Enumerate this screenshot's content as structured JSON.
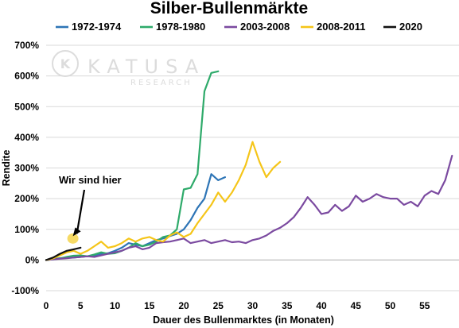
{
  "chart_data": {
    "type": "line",
    "title": "Silber-Bullenmärkte",
    "xlabel": "Dauer des Bullenmarktes (in Monaten)",
    "ylabel": "Rendite",
    "xlim": [
      0,
      60
    ],
    "ylim": [
      -100,
      700
    ],
    "x_ticks": [
      0,
      5,
      10,
      15,
      20,
      25,
      30,
      35,
      40,
      45,
      50,
      55
    ],
    "x_tick_labels": [
      "0",
      "5",
      "10",
      "15",
      "20",
      "25",
      "30",
      "35",
      "40",
      "45",
      "50",
      "55"
    ],
    "y_ticks": [
      -100,
      0,
      100,
      200,
      300,
      400,
      500,
      600,
      700
    ],
    "y_tick_labels": [
      "-100%",
      "0%",
      "100%",
      "200%",
      "300%",
      "400%",
      "500%",
      "600%",
      "700%"
    ],
    "grid": "horizontal",
    "legend_position": "top",
    "watermark": {
      "main": "KATUSA",
      "sub": "RESEARCH"
    },
    "annotation": {
      "text": "Wir sind hier",
      "x": 4,
      "y": 70
    },
    "series": [
      {
        "name": "1972-1974",
        "color": "#2e75b6",
        "points": [
          [
            0,
            0
          ],
          [
            1,
            3
          ],
          [
            2,
            6
          ],
          [
            3,
            8
          ],
          [
            4,
            8
          ],
          [
            5,
            10
          ],
          [
            6,
            12
          ],
          [
            7,
            15
          ],
          [
            8,
            20
          ],
          [
            9,
            22
          ],
          [
            10,
            30
          ],
          [
            11,
            40
          ],
          [
            12,
            55
          ],
          [
            13,
            50
          ],
          [
            14,
            45
          ],
          [
            15,
            55
          ],
          [
            16,
            65
          ],
          [
            17,
            70
          ],
          [
            18,
            78
          ],
          [
            19,
            85
          ],
          [
            20,
            100
          ],
          [
            21,
            130
          ],
          [
            22,
            170
          ],
          [
            23,
            200
          ],
          [
            24,
            280
          ],
          [
            25,
            260
          ],
          [
            26,
            270
          ]
        ]
      },
      {
        "name": "1978-1980",
        "color": "#2eaa6a",
        "points": [
          [
            0,
            0
          ],
          [
            1,
            2
          ],
          [
            2,
            5
          ],
          [
            3,
            10
          ],
          [
            4,
            14
          ],
          [
            5,
            15
          ],
          [
            6,
            12
          ],
          [
            7,
            18
          ],
          [
            8,
            25
          ],
          [
            9,
            20
          ],
          [
            10,
            22
          ],
          [
            11,
            30
          ],
          [
            12,
            40
          ],
          [
            13,
            55
          ],
          [
            14,
            45
          ],
          [
            15,
            50
          ],
          [
            16,
            60
          ],
          [
            17,
            75
          ],
          [
            18,
            80
          ],
          [
            19,
            100
          ],
          [
            20,
            230
          ],
          [
            21,
            235
          ],
          [
            22,
            280
          ],
          [
            23,
            550
          ],
          [
            24,
            610
          ],
          [
            25,
            615
          ]
        ]
      },
      {
        "name": "2003-2008",
        "color": "#7b4aa0",
        "points": [
          [
            0,
            0
          ],
          [
            1,
            2
          ],
          [
            2,
            4
          ],
          [
            3,
            6
          ],
          [
            4,
            8
          ],
          [
            5,
            10
          ],
          [
            6,
            12
          ],
          [
            7,
            10
          ],
          [
            8,
            15
          ],
          [
            9,
            20
          ],
          [
            10,
            25
          ],
          [
            11,
            30
          ],
          [
            12,
            40
          ],
          [
            13,
            45
          ],
          [
            14,
            35
          ],
          [
            15,
            40
          ],
          [
            16,
            55
          ],
          [
            17,
            58
          ],
          [
            18,
            60
          ],
          [
            19,
            65
          ],
          [
            20,
            70
          ],
          [
            21,
            55
          ],
          [
            22,
            60
          ],
          [
            23,
            65
          ],
          [
            24,
            55
          ],
          [
            25,
            60
          ],
          [
            26,
            65
          ],
          [
            27,
            58
          ],
          [
            28,
            60
          ],
          [
            29,
            55
          ],
          [
            30,
            65
          ],
          [
            31,
            70
          ],
          [
            32,
            80
          ],
          [
            33,
            95
          ],
          [
            34,
            105
          ],
          [
            35,
            120
          ],
          [
            36,
            140
          ],
          [
            37,
            170
          ],
          [
            38,
            205
          ],
          [
            39,
            180
          ],
          [
            40,
            150
          ],
          [
            41,
            155
          ],
          [
            42,
            180
          ],
          [
            43,
            160
          ],
          [
            44,
            175
          ],
          [
            45,
            210
          ],
          [
            46,
            190
          ],
          [
            47,
            200
          ],
          [
            48,
            215
          ],
          [
            49,
            205
          ],
          [
            50,
            200
          ],
          [
            51,
            200
          ],
          [
            52,
            180
          ],
          [
            53,
            190
          ],
          [
            54,
            175
          ],
          [
            55,
            210
          ],
          [
            56,
            225
          ],
          [
            57,
            215
          ],
          [
            58,
            260
          ],
          [
            59,
            340
          ]
        ]
      },
      {
        "name": "2008-2011",
        "color": "#f5c518",
        "points": [
          [
            0,
            0
          ],
          [
            1,
            5
          ],
          [
            2,
            15
          ],
          [
            3,
            25
          ],
          [
            4,
            30
          ],
          [
            5,
            20
          ],
          [
            6,
            30
          ],
          [
            7,
            45
          ],
          [
            8,
            60
          ],
          [
            9,
            40
          ],
          [
            10,
            45
          ],
          [
            11,
            55
          ],
          [
            12,
            70
          ],
          [
            13,
            60
          ],
          [
            14,
            70
          ],
          [
            15,
            75
          ],
          [
            16,
            65
          ],
          [
            17,
            60
          ],
          [
            18,
            80
          ],
          [
            19,
            90
          ],
          [
            20,
            75
          ],
          [
            21,
            85
          ],
          [
            22,
            120
          ],
          [
            23,
            150
          ],
          [
            24,
            180
          ],
          [
            25,
            220
          ],
          [
            26,
            190
          ],
          [
            27,
            220
          ],
          [
            28,
            260
          ],
          [
            29,
            310
          ],
          [
            30,
            385
          ],
          [
            31,
            320
          ],
          [
            32,
            270
          ],
          [
            33,
            300
          ],
          [
            34,
            320
          ]
        ]
      },
      {
        "name": "2020",
        "color": "#111111",
        "points": [
          [
            0,
            0
          ],
          [
            1,
            8
          ],
          [
            2,
            20
          ],
          [
            3,
            30
          ],
          [
            4,
            35
          ],
          [
            5,
            40
          ]
        ]
      }
    ]
  }
}
